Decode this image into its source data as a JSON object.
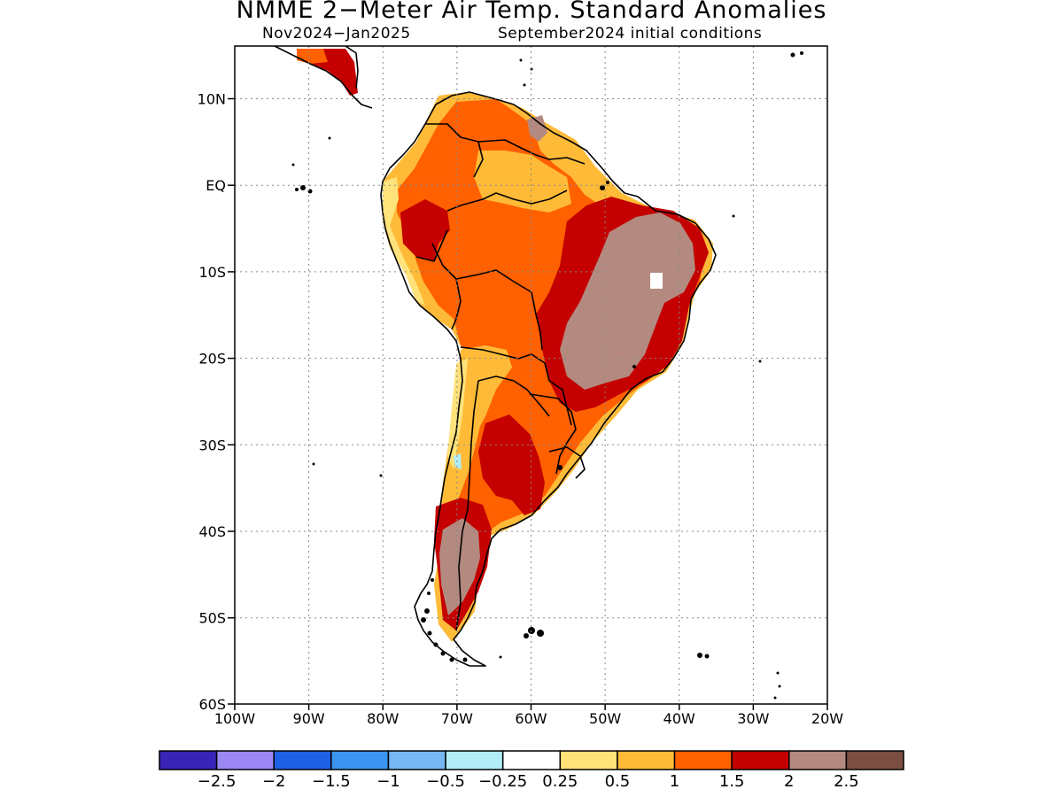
{
  "title": "NMME 2−Meter Air Temp. Standard Anomalies",
  "subtitle_left": "Nov2024−Jan2025",
  "subtitle_right": "September2024 initial conditions",
  "y_tick_labels": [
    "10N",
    "EQ",
    "10S",
    "20S",
    "30S",
    "40S",
    "50S",
    "60S"
  ],
  "x_tick_labels": [
    "100W",
    "90W",
    "80W",
    "70W",
    "60W",
    "50W",
    "40W",
    "30W",
    "20W"
  ],
  "colorbar": {
    "colors": [
      "#3a24b8",
      "#9c88f5",
      "#1f5fe6",
      "#3b95f0",
      "#78b7f6",
      "#b2ecf6",
      "#ffffff",
      "#ffe37a",
      "#ffbb38",
      "#ff6000",
      "#c40000",
      "#b48a80",
      "#7a4e42"
    ],
    "labels": [
      "−2.5",
      "−2",
      "−1.5",
      "−1",
      "−0.5",
      "−0.25",
      "0.25",
      "0.5",
      "1",
      "1.5",
      "2",
      "2.5"
    ]
  },
  "colors": {
    "anomaly_0_5": "#ffe37a",
    "anomaly_1": "#ffbb38",
    "anomaly_1_5": "#ff6000",
    "anomaly_2": "#c40000",
    "anomaly_2_5": "#b48a80",
    "negative_0_5": "#b2ecf6"
  }
}
